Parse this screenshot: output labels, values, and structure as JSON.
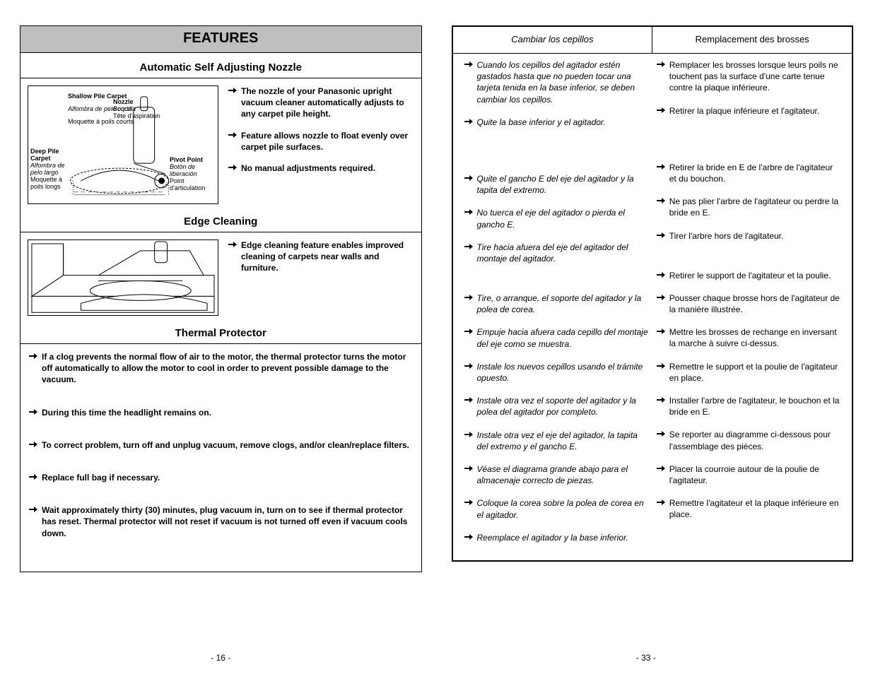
{
  "left": {
    "featuresTitle": "FEATURES",
    "sec1": {
      "title": "Automatic Self Adjusting Nozzle",
      "bullets": [
        "The nozzle of your Panasonic upright vacuum cleaner automatically adjusts to any carpet pile height.",
        "Feature allows nozzle to float evenly over carpet pile surfaces.",
        "No manual adjustments required."
      ],
      "labels": {
        "deep_en": "Deep Pile Carpet",
        "deep_es": "Alfombra de pelo largo",
        "deep_fr": "Moquette à poils longs",
        "shallow_en": "Shallow Pile Carpet",
        "shallow_es": "Alfombra de pelo corto",
        "shallow_fr": "Moquette à poils courts",
        "nozzle_en": "Nozzle",
        "nozzle_es": "Boquilla",
        "nozzle_fr": "Tête d'aspiration",
        "pivot_en": "Pivot Point",
        "pivot_es": "Botón de liberación",
        "pivot_fr": "Point d'articulation"
      }
    },
    "sec2": {
      "title": "Edge Cleaning",
      "bullets": [
        "Edge cleaning feature enables improved cleaning of carpets near walls and furniture"
      ]
    },
    "sec3": {
      "title": "Thermal Protector",
      "bullets": [
        "If a clog prevents the normal flow of air to the motor, the thermal protector turns the motor off automatically to allow the motor to cool in order to prevent possible damage to the vacuum.",
        "During this time the headlight remains on.",
        "To correct problem, turn off and unplug vacuum, remove clogs, and/or clean/replace filters.",
        "Replace full bag if necessary.",
        "Wait approximately thirty (30) minutes, plug vacuum in, turn on to see if thermal protector has reset. Thermal protector will not reset if vacuum is not turned off even if vacuum cools down."
      ]
    },
    "pageNum": "- 16 -"
  },
  "right": {
    "h_es": "Cambiar los cepillos",
    "h_fr": "Remplacement des brosses",
    "es": [
      "Cuando los cepillos del agitador estén gastados hasta que no pueden tocar una tarjeta tenida en la base inferior, se deben cambiar los cepillos.",
      "Quite la base inferior y el agitador.",
      "Quite el gancho E del eje del agitador y la tapita del extremo.",
      "No tuerca el eje del agitador o pierda el gancho E.",
      "Tire hacia afuera del eje del agitador del montaje del agitador.",
      "Tire, o arranque, el soporte del agitador y la polea de corea.",
      "Empuje hacia afuera cada cepillo del montaje del eje como se muestra.",
      "Instale los nuevos cepillos usando el trámite opuesto.",
      "Instale otra vez el soporte del agitador y la polea del agitador por completo.",
      "Instale otra vez el eje del agitador, la tapita del extremo y el gancho E.",
      "Véase el diagrama grande abajo para el almacenaje correcto de piezas.",
      "Coloque la corea sobre la polea de corea en el agitador.",
      "Reemplace el agitador y la base inferior."
    ],
    "fr": [
      "Remplacer les brosses lorsque leurs poils ne touchent pas la surface d'une carte tenue contre la plaque inférieure.",
      "Retirer la plaque inférieure et l'agitateur.",
      "Retirer la bride en E de l'arbre de l'agitateur et du bouchon.",
      "Ne pas plier l'arbre de l'agitateur ou perdre la bride en E.",
      "Tirer l'arbre hors de l'agitateur.",
      "Retirer le support de l'agitateur et la poulie.",
      "Pousser chaque brosse hors de l'agitateur de la manière illustrée.",
      "Mettre les brosses de rechange en inversant la marche à suivre ci-dessus.",
      "Remettre le support et la poulie de l'agitateur en place.",
      "Installer l'arbre de l'agitateur, le bouchon et la bride en E.",
      "Se reporter au diagramme ci-dessous pour l'assemblage des pièces.",
      "Placer la courroie autour de la poulie de l'agitateur.",
      "Remettre l'agitateur et la plaque inférieure en place."
    ],
    "gaps": [
      0,
      1,
      4
    ],
    "pageNum": "- 33 -"
  }
}
